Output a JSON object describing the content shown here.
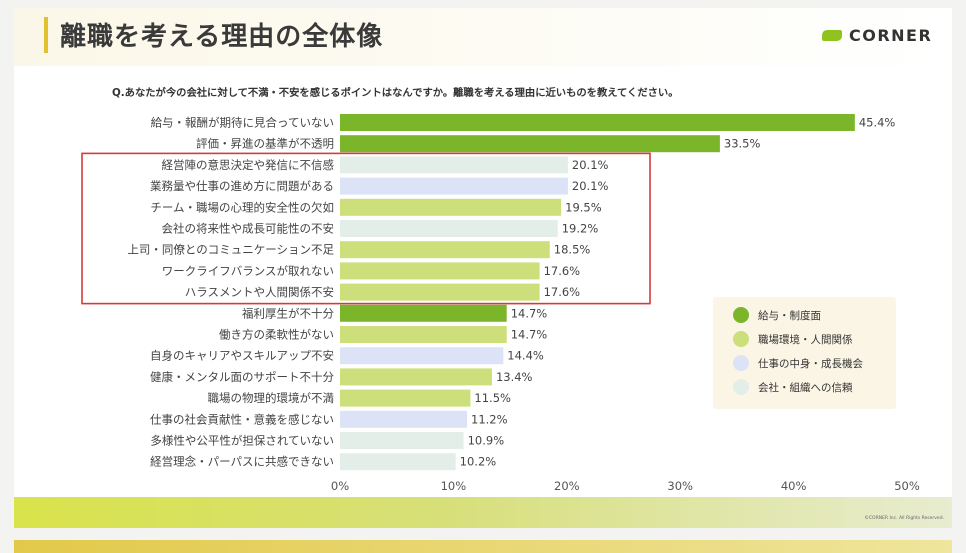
{
  "header": {
    "title": "離職を考える理由の全体像"
  },
  "logo": {
    "text": "CORNER"
  },
  "question": "Q.あなたが今の会社に対して不満・不安を感じるポイントはなんですか。離職を考える理由に近いものを教えてください。",
  "colors": {
    "給与・制度面": "#7ab52a",
    "職場環境・人間関係": "#cddf7a",
    "仕事の中身・成長機会": "#dde3f7",
    "会社・組織への信頼": "#e4eee9",
    "highlight": "#d33a3a"
  },
  "legend": [
    {
      "label": "給与・制度面",
      "group": "給与・制度面"
    },
    {
      "label": "職場環境・人間関係",
      "group": "職場環境・人間関係"
    },
    {
      "label": "仕事の中身・成長機会",
      "group": "仕事の中身・成長機会"
    },
    {
      "label": "会社・組織への信頼",
      "group": "会社・組織への信頼"
    }
  ],
  "chart_data": {
    "type": "bar",
    "orientation": "horizontal",
    "title": "",
    "xlabel": "",
    "ylabel": "",
    "xlim": [
      0,
      50
    ],
    "ticks": [
      0,
      10,
      20,
      30,
      40,
      50
    ],
    "tick_labels": [
      "0%",
      "10%",
      "20%",
      "30%",
      "40%",
      "50%"
    ],
    "grid": false,
    "legend_position": "bottom-right",
    "highlight_range": [
      2,
      8
    ],
    "categories": [
      "給与・報酬が期待に見合っていない",
      "評価・昇進の基準が不透明",
      "経営陣の意思決定や発信に不信感",
      "業務量や仕事の進め方に問題がある",
      "チーム・職場の心理的安全性の欠如",
      "会社の将来性や成長可能性の不安",
      "上司・同僚とのコミュニケーション不足",
      "ワークライフバランスが取れない",
      "ハラスメントや人間関係不安",
      "福利厚生が不十分",
      "働き方の柔軟性がない",
      "自身のキャリアやスキルアップ不安",
      "健康・メンタル面のサポート不十分",
      "職場の物理的環境が不満",
      "仕事の社会貢献性・意義を感じない",
      "多様性や公平性が担保されていない",
      "経営理念・パーパスに共感できない"
    ],
    "values": [
      45.4,
      33.5,
      20.1,
      20.1,
      19.5,
      19.2,
      18.5,
      17.6,
      17.6,
      14.7,
      14.7,
      14.4,
      13.4,
      11.5,
      11.2,
      10.9,
      10.2
    ],
    "value_labels": [
      "45.4%",
      "33.5%",
      "20.1%",
      "20.1%",
      "19.5%",
      "19.2%",
      "18.5%",
      "17.6%",
      "17.6%",
      "14.7%",
      "14.7%",
      "14.4%",
      "13.4%",
      "11.5%",
      "11.2%",
      "10.9%",
      "10.2%"
    ],
    "groups": [
      "給与・制度面",
      "給与・制度面",
      "会社・組織への信頼",
      "仕事の中身・成長機会",
      "職場環境・人間関係",
      "会社・組織への信頼",
      "職場環境・人間関係",
      "職場環境・人間関係",
      "職場環境・人間関係",
      "給与・制度面",
      "職場環境・人間関係",
      "仕事の中身・成長機会",
      "職場環境・人間関係",
      "職場環境・人間関係",
      "仕事の中身・成長機会",
      "会社・組織への信頼",
      "会社・組織への信頼"
    ]
  },
  "footer": {
    "copyright": "©CORNER Inc. All Rights Reserved."
  }
}
